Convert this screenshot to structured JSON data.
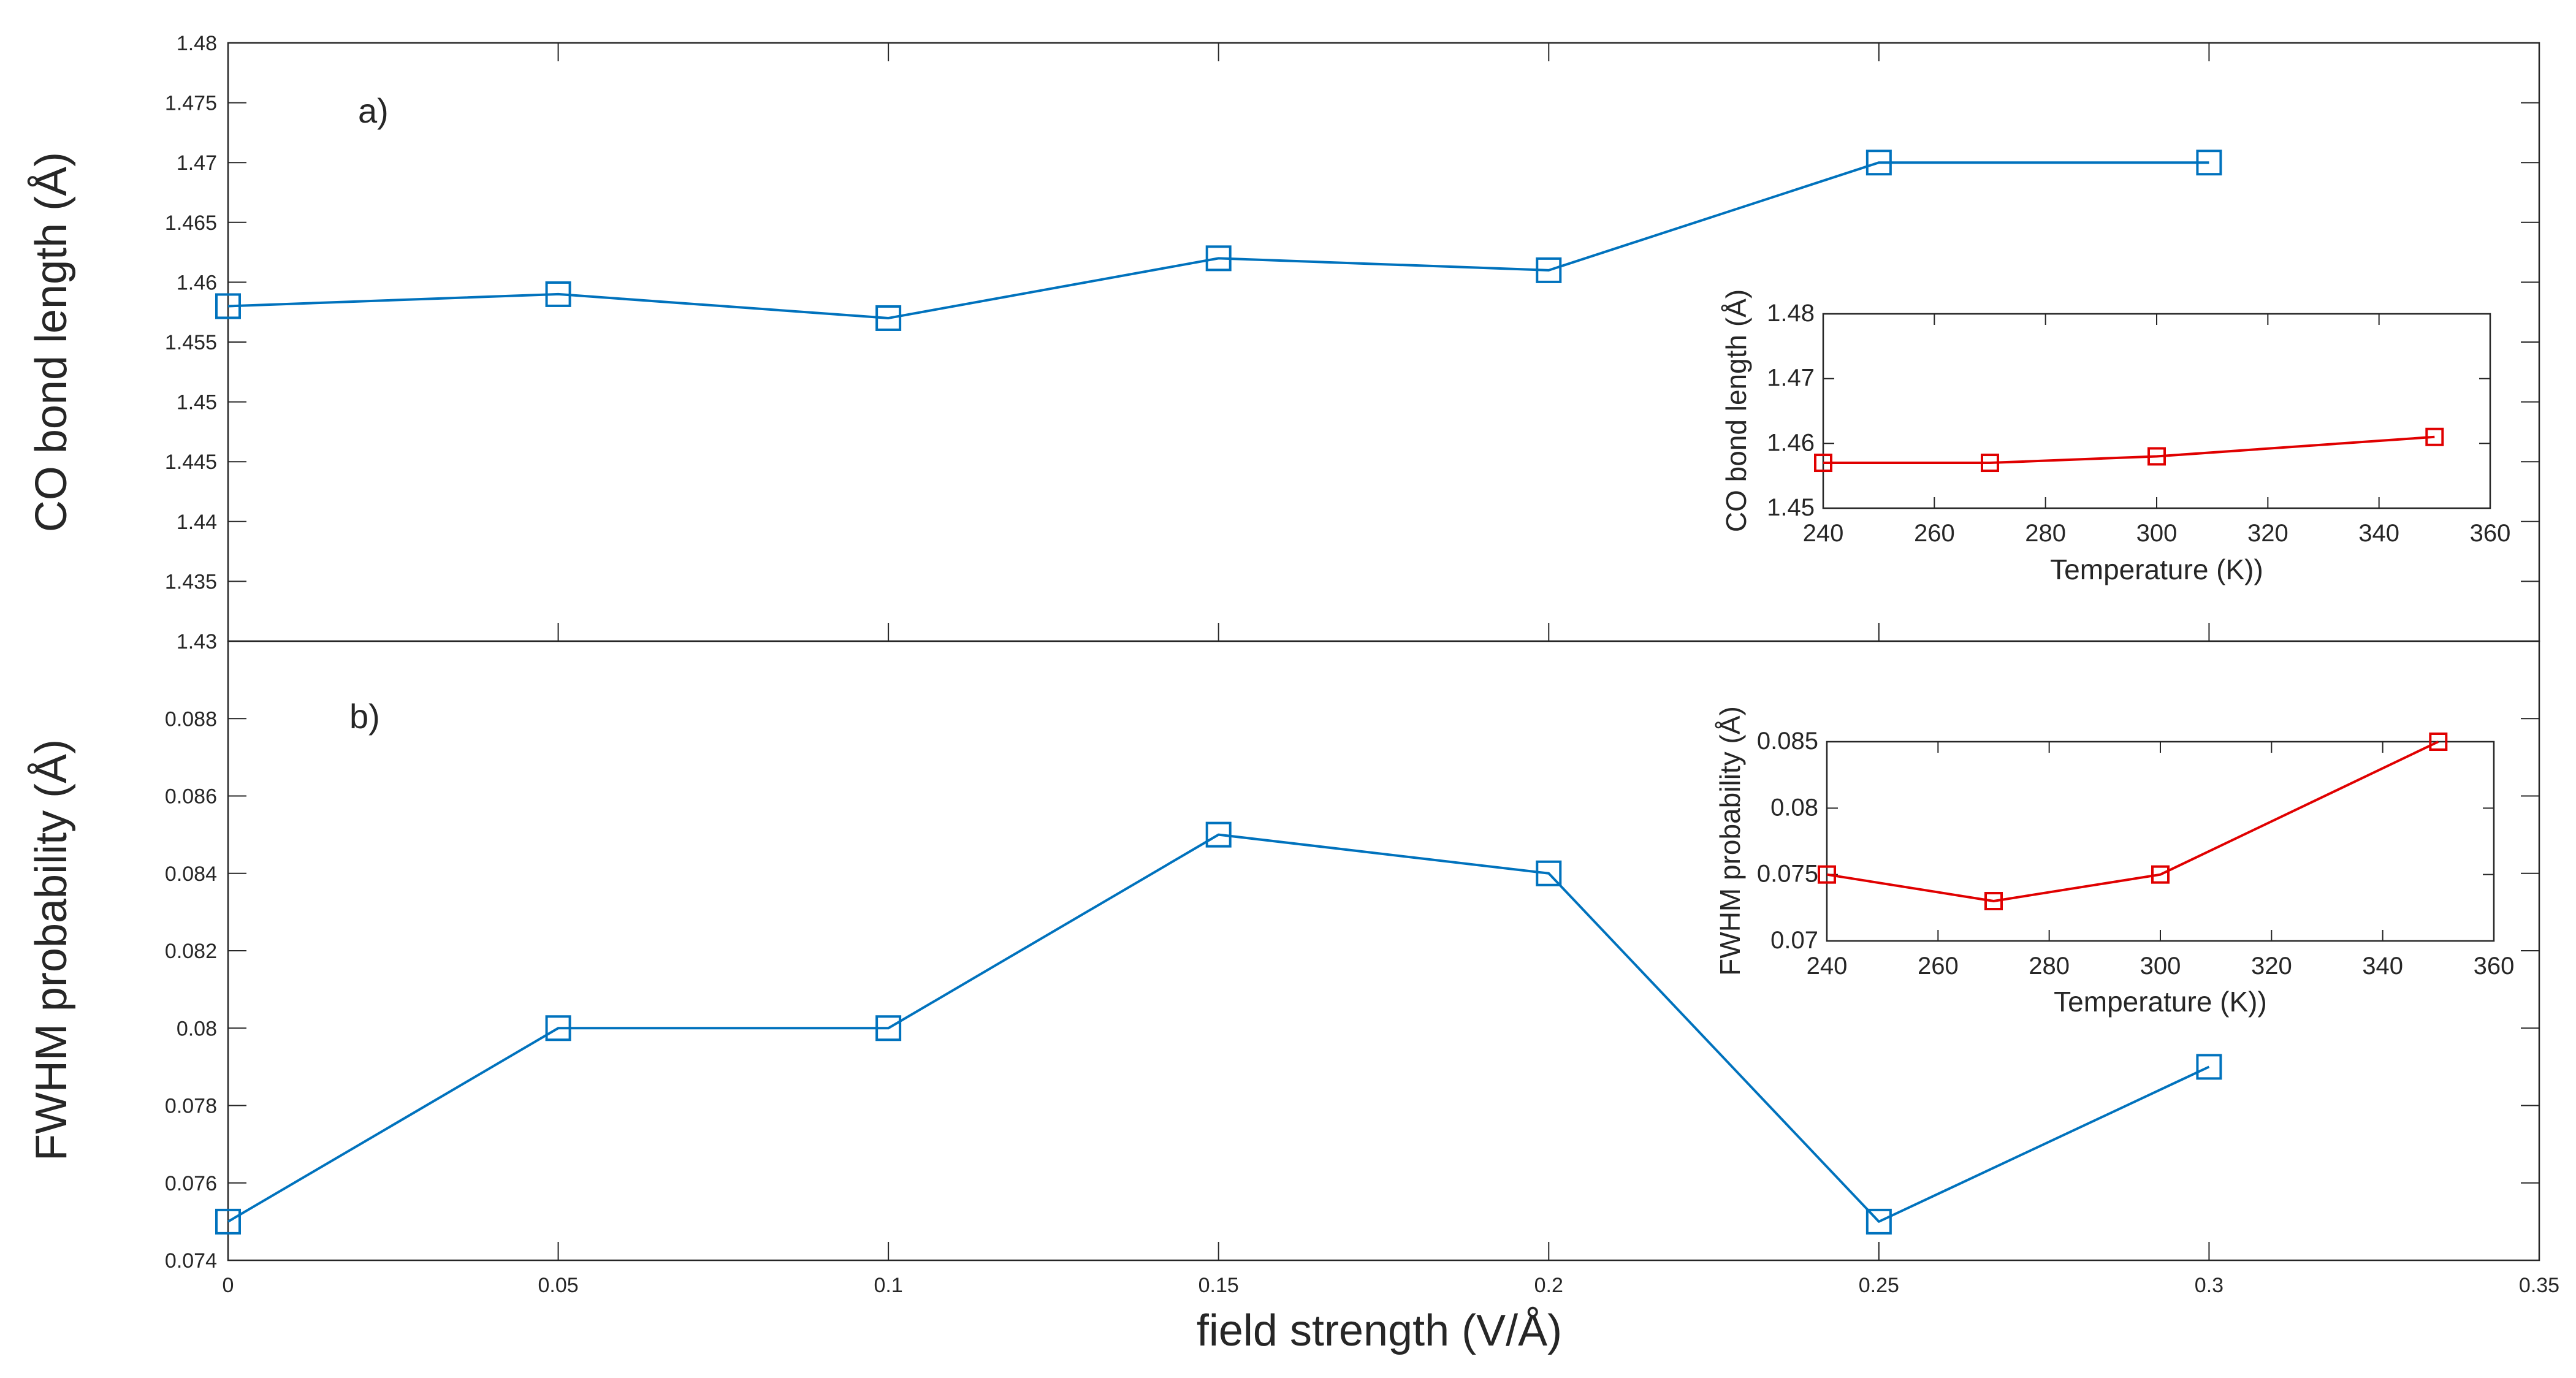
{
  "chart_data": [
    {
      "id": "panel-a",
      "type": "line",
      "panel_label": "a)",
      "xlabel": "field strength (V/Å)",
      "ylabel": "CO bond length (Å)",
      "xlim": [
        0,
        0.35
      ],
      "ylim": [
        1.43,
        1.48
      ],
      "x_ticks": [
        0,
        0.05,
        0.1,
        0.15,
        0.2,
        0.25,
        0.3,
        0.35
      ],
      "x_tick_labels": [
        "0",
        "0.05",
        "0.1",
        "0.15",
        "0.2",
        "0.25",
        "0.3",
        "0.35"
      ],
      "y_ticks": [
        1.43,
        1.435,
        1.44,
        1.445,
        1.45,
        1.455,
        1.46,
        1.465,
        1.47,
        1.475,
        1.48
      ],
      "y_tick_labels": [
        "1.43",
        "1.435",
        "1.44",
        "1.445",
        "1.45",
        "1.455",
        "1.46",
        "1.465",
        "1.47",
        "1.475",
        "1.48"
      ],
      "series": [
        {
          "name": "CO bond length",
          "color": "#0072BD",
          "marker": "square",
          "x": [
            0,
            0.05,
            0.1,
            0.15,
            0.2,
            0.25,
            0.3
          ],
          "y": [
            1.458,
            1.459,
            1.457,
            1.462,
            1.461,
            1.47,
            1.47
          ]
        }
      ]
    },
    {
      "id": "panel-b",
      "type": "line",
      "panel_label": "b)",
      "xlabel": "field strength (V/Å)",
      "ylabel": "FWHM probability (Å)",
      "xlim": [
        0,
        0.35
      ],
      "ylim": [
        0.074,
        0.09
      ],
      "x_ticks": [
        0,
        0.05,
        0.1,
        0.15,
        0.2,
        0.25,
        0.3,
        0.35
      ],
      "x_tick_labels": [
        "0",
        "0.05",
        "0.1",
        "0.15",
        "0.2",
        "0.25",
        "0.3",
        "0.35"
      ],
      "y_ticks": [
        0.074,
        0.076,
        0.078,
        0.08,
        0.082,
        0.084,
        0.086,
        0.088
      ],
      "y_tick_labels": [
        "0.074",
        "0.076",
        "0.078",
        "0.08",
        "0.082",
        "0.084",
        "0.086",
        "0.088"
      ],
      "series": [
        {
          "name": "FWHM probability",
          "color": "#0072BD",
          "marker": "square",
          "x": [
            0,
            0.05,
            0.1,
            0.15,
            0.2,
            0.25,
            0.3
          ],
          "y": [
            0.075,
            0.08,
            0.08,
            0.085,
            0.084,
            0.075,
            0.079
          ]
        }
      ]
    },
    {
      "id": "inset-a",
      "type": "line",
      "xlabel": "Temperature (K))",
      "ylabel": "CO bond length (Å)",
      "xlim": [
        240,
        360
      ],
      "ylim": [
        1.45,
        1.48
      ],
      "x_ticks": [
        240,
        260,
        280,
        300,
        320,
        340,
        360
      ],
      "x_tick_labels": [
        "240",
        "260",
        "280",
        "300",
        "320",
        "340",
        "360"
      ],
      "y_ticks": [
        1.45,
        1.46,
        1.47,
        1.48
      ],
      "y_tick_labels": [
        "1.45",
        "1.46",
        "1.47",
        "1.48"
      ],
      "series": [
        {
          "name": "CO bond length vs T",
          "color": "#E00000",
          "marker": "square",
          "x": [
            240,
            270,
            300,
            350
          ],
          "y": [
            1.457,
            1.457,
            1.458,
            1.461
          ]
        }
      ]
    },
    {
      "id": "inset-b",
      "type": "line",
      "xlabel": "Temperature (K))",
      "ylabel": "FWHM probability (Å)",
      "xlim": [
        240,
        360
      ],
      "ylim": [
        0.07,
        0.085
      ],
      "x_ticks": [
        240,
        260,
        280,
        300,
        320,
        340,
        360
      ],
      "x_tick_labels": [
        "240",
        "260",
        "280",
        "300",
        "320",
        "340",
        "360"
      ],
      "y_ticks": [
        0.07,
        0.075,
        0.08,
        0.085
      ],
      "y_tick_labels": [
        "0.07",
        "0.075",
        "0.08",
        "0.085"
      ],
      "series": [
        {
          "name": "FWHM probability vs T",
          "color": "#E00000",
          "marker": "square",
          "x": [
            240,
            270,
            300,
            350
          ],
          "y": [
            0.075,
            0.073,
            0.075,
            0.085
          ]
        }
      ]
    }
  ]
}
